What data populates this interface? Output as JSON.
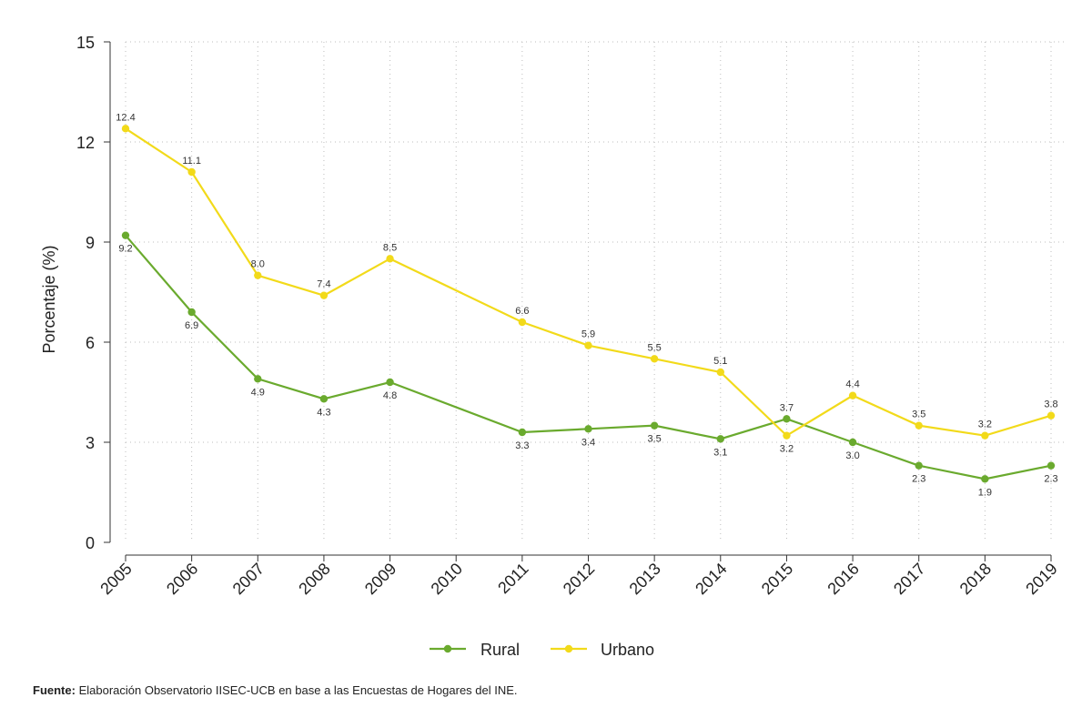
{
  "chart_data": {
    "type": "line",
    "title": "",
    "xlabel": "",
    "ylabel": "Porcentaje (%)",
    "ylim": [
      0,
      15
    ],
    "yticks": [
      0,
      3,
      6,
      9,
      12,
      15
    ],
    "categories": [
      "2005",
      "2006",
      "2007",
      "2008",
      "2009",
      "2010",
      "2011",
      "2012",
      "2013",
      "2014",
      "2015",
      "2016",
      "2017",
      "2018",
      "2019"
    ],
    "grid": true,
    "legend_position": "bottom-center",
    "series": [
      {
        "name": "Rural",
        "color": "#6aaa2e",
        "values": [
          9.2,
          6.9,
          4.9,
          4.3,
          4.8,
          null,
          3.3,
          3.4,
          3.5,
          3.1,
          3.7,
          3.0,
          2.3,
          1.9,
          2.3
        ],
        "labels": [
          "9.2",
          "6.9",
          "4.9",
          "4.3",
          "4.8",
          null,
          "3.3",
          "3.4",
          "3.5",
          "3.1",
          "3.7",
          "3.0",
          "2.3",
          "1.9",
          "2.3"
        ]
      },
      {
        "name": "Urbano",
        "color": "#f2da1a",
        "values": [
          12.4,
          11.1,
          8.0,
          7.4,
          8.5,
          null,
          6.6,
          5.9,
          5.5,
          5.1,
          3.2,
          4.4,
          3.5,
          3.2,
          3.8
        ],
        "labels": [
          "12.4",
          "11.1",
          "8.0",
          "7.4",
          "8.5",
          null,
          "6.6",
          "5.9",
          "5.5",
          "5.1",
          "3.2",
          "4.4",
          "3.5",
          "3.2",
          "3.8"
        ]
      }
    ]
  },
  "source": {
    "label": "Fuente:",
    "text": " Elaboración Observatorio IISEC-UCB en base a las Encuestas de Hogares del INE."
  }
}
